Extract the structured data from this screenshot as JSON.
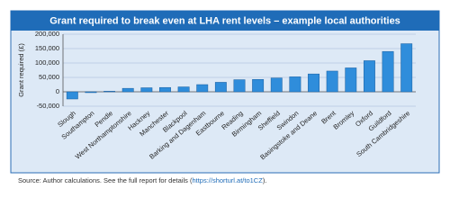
{
  "chart_data": {
    "type": "bar",
    "title": "Grant required to break even at LHA rent levels – example local authorities",
    "y_label": "Grant required (£)",
    "categories": [
      "Slough",
      "Southampton",
      "Pendle",
      "West Northamptonshire",
      "Hackney",
      "Manchester",
      "Blackpool",
      "Barking and Dagenham",
      "Eastbourne",
      "Reading",
      "Birmingham",
      "Sheffield",
      "Swindon",
      "Basingstoke and Deane",
      "Brent",
      "Bromley",
      "Oxford",
      "Guildford",
      "South Cambridgeshire"
    ],
    "values": [
      -25000,
      -3000,
      2000,
      12000,
      14000,
      15000,
      17000,
      25000,
      33000,
      42000,
      43000,
      48000,
      52000,
      62000,
      72000,
      83000,
      108000,
      140000,
      167000
    ],
    "color": "#2f8ddb",
    "ylim": [
      -50000,
      200000
    ],
    "yticks": [
      {
        "value": -50000,
        "label": "-50,000"
      },
      0,
      {
        "value": 50000,
        "label": "50,000"
      },
      {
        "value": 100000,
        "label": "100,000"
      },
      {
        "value": 150000,
        "label": "150,000"
      },
      {
        "value": 200000,
        "label": "200,000"
      }
    ],
    "grid": true
  },
  "source": {
    "text": "Source: Author calculations. See the full report for details (",
    "link": "https://shorturl.at/to1CZ",
    "suffix": ")."
  }
}
